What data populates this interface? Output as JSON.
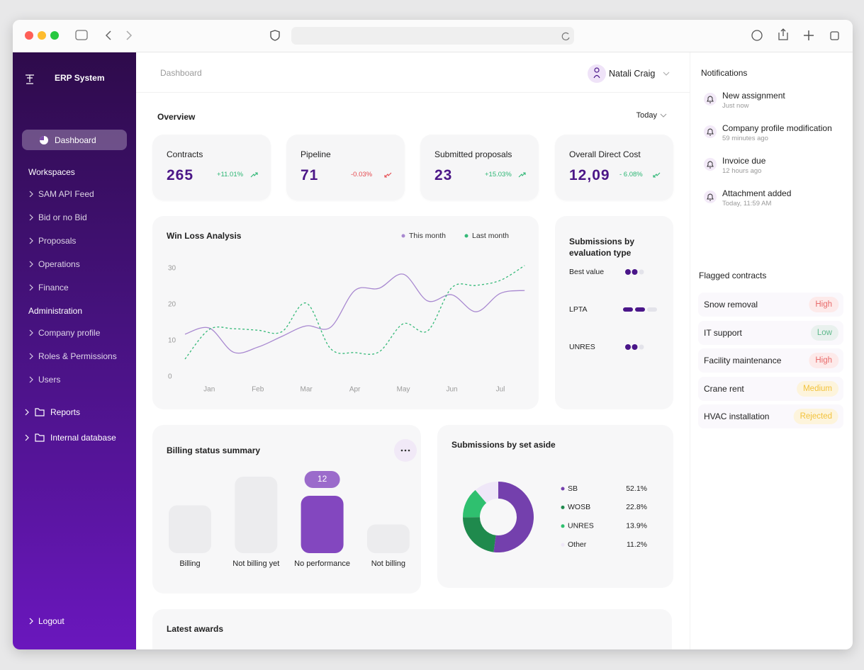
{
  "sidebar": {
    "brand": "ERP System",
    "active": "Dashboard",
    "sections": [
      {
        "title": "Workspaces",
        "items": [
          "SAM API Feed",
          "Bid or no Bid",
          "Proposals",
          "Operations",
          "Finance"
        ]
      },
      {
        "title": "Administration",
        "items": [
          "Company profile",
          "Roles & Permissions",
          "Users"
        ]
      }
    ],
    "folders": [
      "Reports",
      "Internal database"
    ],
    "logout": "Logout"
  },
  "header": {
    "breadcrumb": "Dashboard",
    "user": "Natali Craig"
  },
  "overview": {
    "title": "Overview",
    "period": "Today",
    "cards": [
      {
        "label": "Contracts",
        "value": "265",
        "change": "+11.01%",
        "trend": "up",
        "color": "#2bb673"
      },
      {
        "label": "Pipeline",
        "value": "71",
        "change": "-0.03%",
        "trend": "down",
        "color": "#e5484d"
      },
      {
        "label": "Submitted proposals",
        "value": "23",
        "change": "+15.03%",
        "trend": "up",
        "color": "#2bb673"
      },
      {
        "label": "Overall Direct Cost",
        "value": "12,09",
        "change": "- 6.08%",
        "trend": "down",
        "color": "#2bb673"
      }
    ]
  },
  "chart_data": [
    {
      "type": "line",
      "title": "Win Loss Analysis",
      "categories": [
        null,
        "Jan",
        null,
        "Feb",
        null,
        "Mar",
        null,
        "Apr",
        null,
        "May",
        null,
        "Jun",
        null,
        "Jul",
        null
      ],
      "series": [
        {
          "name": "This month",
          "color": "#a888d0",
          "dash": false,
          "values": [
            11.8,
            13.5,
            6.8,
            8.2,
            11.2,
            14.1,
            13.7,
            23.9,
            24.5,
            28.4,
            21,
            22.7,
            18,
            23.1,
            23.9
          ]
        },
        {
          "name": "Last month",
          "color": "#35b978",
          "dash": true,
          "values": [
            4.9,
            13.1,
            13.3,
            12.9,
            12.5,
            20.4,
            7.8,
            6.7,
            6.9,
            14.7,
            12.7,
            24.7,
            25.3,
            26.7,
            30.8
          ]
        }
      ],
      "ylim": [
        0,
        30
      ],
      "yticks": [
        0,
        10,
        20,
        30
      ],
      "grid": false
    },
    {
      "type": "rating",
      "title": "Submissions by evaluation type",
      "categories": [
        "Best value",
        "LPTA",
        "UNRES"
      ],
      "values": [
        2,
        2,
        2
      ],
      "max": 3,
      "shapes": [
        "dots",
        "bars",
        "dots"
      ],
      "color": "#4a1689",
      "track_color": "#e3e3ea"
    },
    {
      "type": "bar",
      "title": "Billing status summary",
      "categories": [
        "Billing",
        "Not billing yet",
        "No performance",
        "Not billing"
      ],
      "values": [
        10,
        16,
        12,
        6
      ],
      "show_value": [
        false,
        false,
        true,
        false
      ],
      "colors": [
        "#ececee",
        "#ececee",
        "#8347bf",
        "#ececee"
      ]
    },
    {
      "type": "donut",
      "title": "Submissions by set aside",
      "categories": [
        "SB",
        "WOSB",
        "UNRES",
        "Other"
      ],
      "values": [
        52.1,
        22.8,
        13.9,
        11.2
      ],
      "value_labels": [
        "52.1%",
        "22.8%",
        "13.9%",
        "11.2%"
      ],
      "colors": [
        "#7440ad",
        "#1f8a4d",
        "#2fc06f",
        "#efe7f8"
      ]
    }
  ],
  "notifications": {
    "title": "Notifications",
    "items": [
      {
        "title": "New assignment",
        "time": "Just now"
      },
      {
        "title": "Company profile modification",
        "time": "59 minutes ago"
      },
      {
        "title": "Invoice due",
        "time": "12 hours ago"
      },
      {
        "title": "Attachment added",
        "time": "Today, 11:59 AM"
      }
    ]
  },
  "flagged": {
    "title": "Flagged contracts",
    "rows": [
      {
        "name": "Snow removal",
        "status": "High",
        "color": "#e86b6b",
        "bg": "#fdeaea"
      },
      {
        "name": "IT support",
        "status": "Low",
        "color": "#5fb98c",
        "bg": "#e9f1ee"
      },
      {
        "name": "Facility maintenance",
        "status": "High",
        "color": "#e86b6b",
        "bg": "#fdeaea"
      },
      {
        "name": "Crane rent",
        "status": "Medium",
        "color": "#f2c23c",
        "bg": "#fdf4dc"
      },
      {
        "name": "HVAC installation",
        "status": "Rejected",
        "color": "#f2c23c",
        "bg": "#fdf4dc"
      }
    ]
  },
  "latest_awards": {
    "title": "Latest awards"
  }
}
